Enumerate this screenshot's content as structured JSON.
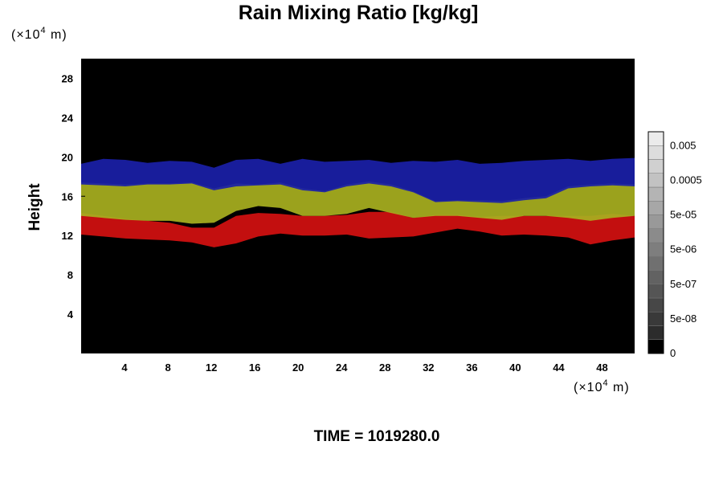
{
  "chart_data": {
    "type": "heatmap",
    "title": "Rain Mixing Ratio [kg/kg]",
    "ylabel": "Height",
    "xlabel": "",
    "x_unit": "(×10",
    "x_unit_exp": "4",
    "x_unit_tail": " m)",
    "y_unit": "(×10",
    "y_unit_exp": "4",
    "y_unit_tail": " m)",
    "xlim": [
      0,
      51
    ],
    "ylim": [
      0,
      30
    ],
    "x_ticks": [
      4,
      8,
      12,
      16,
      20,
      24,
      28,
      32,
      36,
      40,
      44,
      48
    ],
    "y_ticks": [
      4,
      8,
      12,
      16,
      20,
      24,
      28
    ],
    "background_color": "#000000",
    "bands": [
      {
        "name": "red",
        "color": "#d41010",
        "top": [
          14.3,
          14.0,
          13.7,
          13.5,
          13.3,
          12.8,
          12.8,
          14.0,
          14.3,
          14.2,
          14.0,
          14.0,
          14.1,
          14.4,
          14.4,
          13.8,
          14.1,
          14.1,
          13.9,
          14.0,
          14.0,
          14.0,
          14.0,
          14.0,
          14.2,
          14.0
        ],
        "bottom": [
          12.1,
          11.9,
          11.7,
          11.6,
          11.5,
          11.3,
          10.8,
          11.2,
          11.9,
          12.2,
          12.0,
          12.0,
          12.1,
          11.7,
          11.8,
          11.9,
          12.3,
          12.7,
          12.4,
          12.0,
          12.1,
          12.0,
          11.8,
          11.1,
          11.5,
          11.8
        ]
      },
      {
        "name": "yellow-green",
        "color": "#a8b020",
        "top": [
          17.4,
          17.3,
          17.2,
          17.3,
          17.3,
          17.4,
          16.8,
          17.3,
          17.2,
          17.4,
          16.8,
          16.5,
          17.2,
          17.5,
          17.2,
          16.5,
          15.5,
          15.6,
          15.6,
          15.5,
          15.8,
          16.0,
          17.0,
          17.2,
          17.3,
          17.2
        ],
        "bottom": [
          14.0,
          13.8,
          13.6,
          13.5,
          13.5,
          13.2,
          13.3,
          14.5,
          15.0,
          14.8,
          14.0,
          14.0,
          14.2,
          14.8,
          14.3,
          13.8,
          14.0,
          14.0,
          13.8,
          13.6,
          14.0,
          14.0,
          13.8,
          13.5,
          13.8,
          14.0
        ]
      },
      {
        "name": "blue",
        "color": "#1a20a8",
        "top": [
          19.3,
          19.8,
          19.7,
          19.4,
          19.6,
          19.5,
          18.9,
          19.7,
          19.8,
          19.3,
          19.8,
          19.5,
          19.6,
          19.7,
          19.4,
          19.6,
          19.5,
          19.7,
          19.3,
          19.4,
          19.6,
          19.7,
          19.8,
          19.6,
          19.8,
          19.9
        ],
        "bottom": [
          17.2,
          17.1,
          17.0,
          17.2,
          17.2,
          17.3,
          16.6,
          17.0,
          17.1,
          17.2,
          16.6,
          16.4,
          17.0,
          17.3,
          17.0,
          16.4,
          15.4,
          15.5,
          15.4,
          15.3,
          15.6,
          15.8,
          16.8,
          17.0,
          17.1,
          17.0
        ]
      }
    ],
    "colorbar": {
      "labels": [
        "0.005",
        "0.0005",
        "5e-05",
        "5e-06",
        "5e-07",
        "5e-08",
        "0"
      ],
      "levels": 16
    },
    "time_label": "TIME = 1019280.0"
  }
}
